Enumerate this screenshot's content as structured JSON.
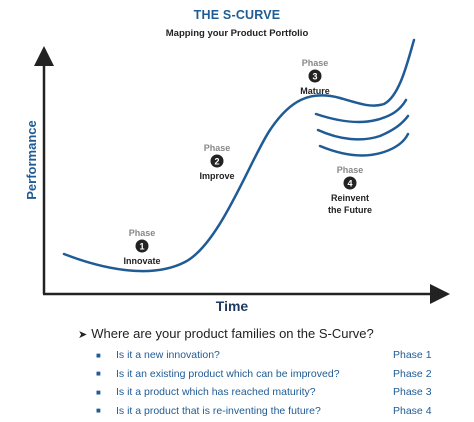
{
  "title": "THE S-CURVE",
  "subtitle": "Mapping your Product Portfolio",
  "axes": {
    "x_label": "Time",
    "y_label": "Performance"
  },
  "phases": [
    {
      "word": "Phase",
      "number": "1",
      "name": "Innovate"
    },
    {
      "word": "Phase",
      "number": "2",
      "name": "Improve"
    },
    {
      "word": "Phase",
      "number": "3",
      "name": "Mature"
    },
    {
      "word": "Phase",
      "number": "4",
      "name_line1": "Reinvent",
      "name_line2": "the Future"
    }
  ],
  "question": "Where are your product families on the S-Curve?",
  "rows": [
    {
      "text": "Is it a new innovation?",
      "phase": "Phase 1"
    },
    {
      "text": "Is it an existing product which can be improved?",
      "phase": "Phase 2"
    },
    {
      "text": "Is it a product which has reached maturity?",
      "phase": "Phase 3"
    },
    {
      "text": "Is it a product that is re-inventing the future?",
      "phase": "Phase 4"
    }
  ],
  "colors": {
    "curve": "#1f5b94",
    "axis": "#222222",
    "text_blue": "#1f5b94"
  }
}
